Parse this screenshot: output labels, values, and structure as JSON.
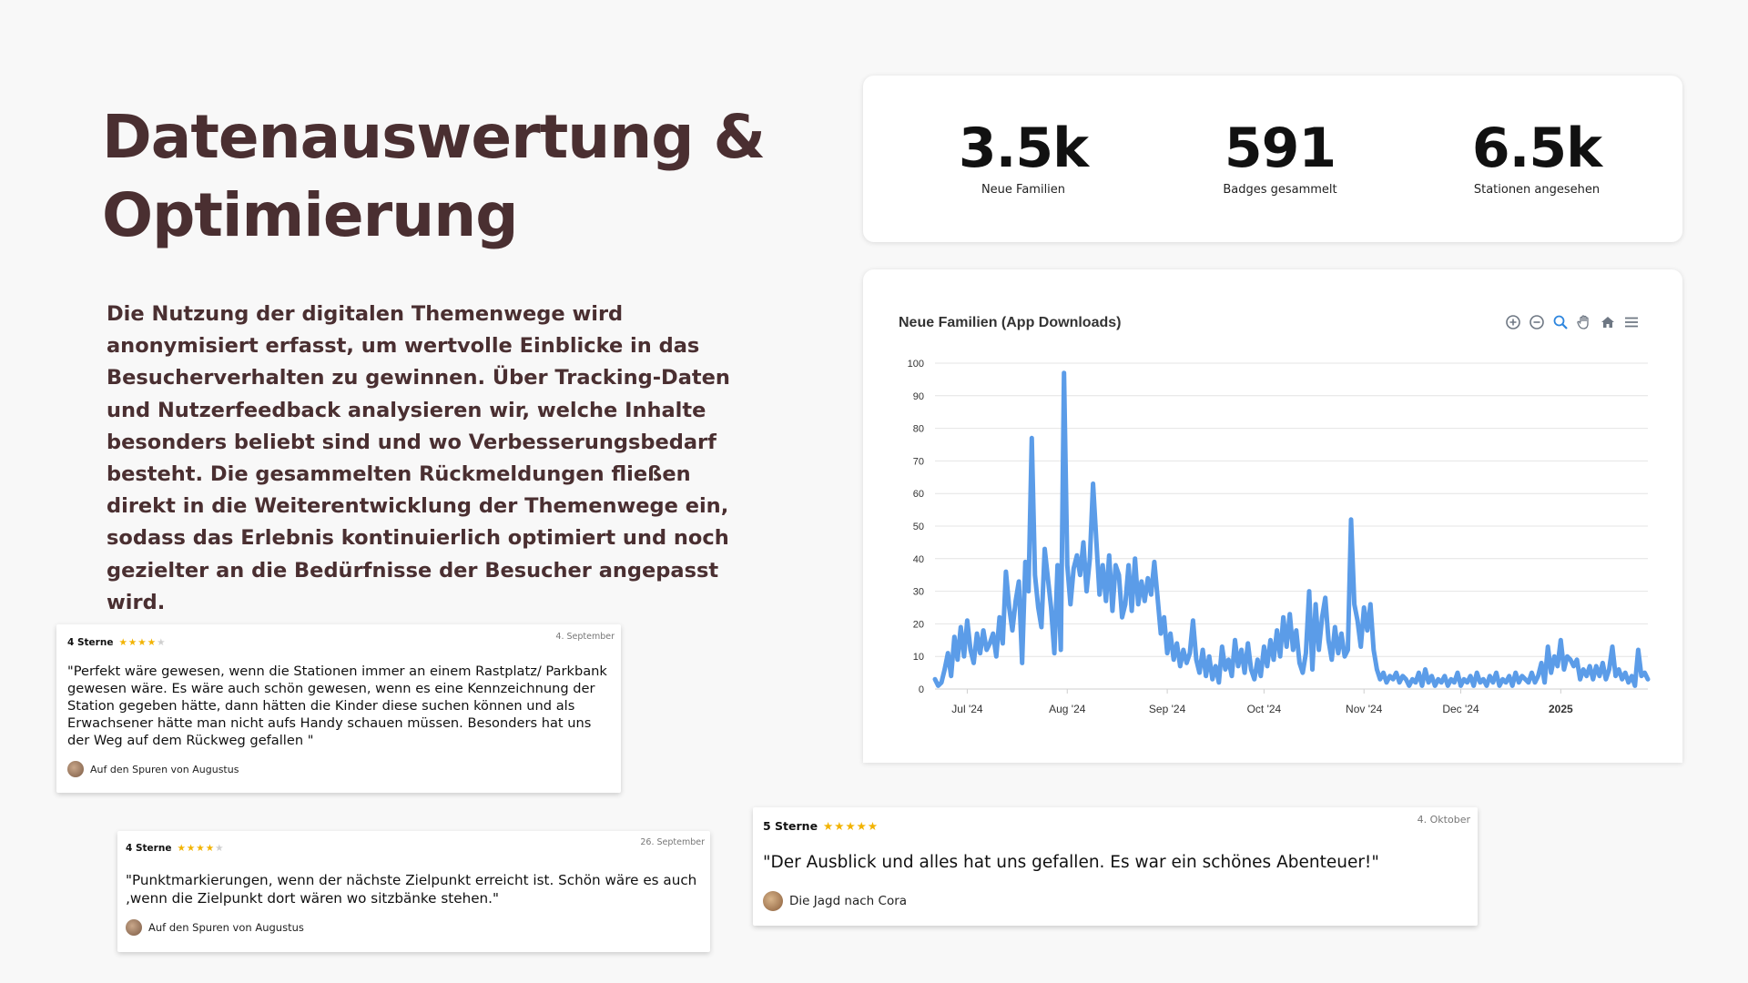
{
  "title_lines": [
    "Datenauswertung &",
    "Optimierung"
  ],
  "intro": "Die Nutzung der digitalen Themenwege wird anonymisiert erfasst, um wertvolle Einblicke in das Besucherverhalten zu gewinnen. Über Tracking-Daten und Nutzerfeedback analysieren wir, welche Inhalte besonders beliebt sind und wo Verbesserungsbedarf besteht. Die gesammelten Rückmeldungen fließen direkt in die Weiterentwicklung der Themenwege ein, sodass das Erlebnis kontinuierlich optimiert und noch gezielter an die Bedürfnisse der Besucher angepasst wird.",
  "stats": [
    {
      "value": "3.5k",
      "label": "Neue Familien"
    },
    {
      "value": "591",
      "label": "Badges gesammelt"
    },
    {
      "value": "6.5k",
      "label": "Stationen angesehen"
    }
  ],
  "toolbar": [
    "zoom-in-icon",
    "zoom-out-icon",
    "zoom-selection-icon",
    "pan-hand-icon",
    "home-reset-icon",
    "menu-icon"
  ],
  "chart_data": {
    "type": "line",
    "title": "Neue Familien (App Downloads)",
    "xlabel": "",
    "ylabel": "",
    "ylim": [
      0,
      100
    ],
    "yticks": [
      0,
      10,
      20,
      30,
      40,
      50,
      60,
      70,
      80,
      90,
      100
    ],
    "x_range": [
      "2024-06-21",
      "2025-01-28"
    ],
    "xticks": [
      {
        "date": "2024-07-01",
        "label": "Jul '24",
        "bold": false
      },
      {
        "date": "2024-08-01",
        "label": "Aug '24",
        "bold": false
      },
      {
        "date": "2024-09-01",
        "label": "Sep '24",
        "bold": false
      },
      {
        "date": "2024-10-01",
        "label": "Oct '24",
        "bold": false
      },
      {
        "date": "2024-11-01",
        "label": "Nov '24",
        "bold": false
      },
      {
        "date": "2024-12-01",
        "label": "Dec '24",
        "bold": false
      },
      {
        "date": "2025-01-01",
        "label": "2025",
        "bold": true
      }
    ],
    "grid": true,
    "color": "#5b9ce8",
    "series": [
      {
        "points": [
          [
            "2024-06-21",
            3
          ],
          [
            "2024-06-22",
            1
          ],
          [
            "2024-06-23",
            2
          ],
          [
            "2024-06-24",
            6
          ],
          [
            "2024-06-25",
            11
          ],
          [
            "2024-06-26",
            4
          ],
          [
            "2024-06-27",
            16
          ],
          [
            "2024-06-28",
            9
          ],
          [
            "2024-06-29",
            19
          ],
          [
            "2024-06-30",
            10
          ],
          [
            "2024-07-01",
            21
          ],
          [
            "2024-07-02",
            12
          ],
          [
            "2024-07-03",
            8
          ],
          [
            "2024-07-04",
            17
          ],
          [
            "2024-07-05",
            11
          ],
          [
            "2024-07-06",
            18
          ],
          [
            "2024-07-07",
            12
          ],
          [
            "2024-07-08",
            14
          ],
          [
            "2024-07-09",
            17
          ],
          [
            "2024-07-10",
            10
          ],
          [
            "2024-07-11",
            22
          ],
          [
            "2024-07-12",
            14
          ],
          [
            "2024-07-13",
            36
          ],
          [
            "2024-07-14",
            25
          ],
          [
            "2024-07-15",
            18
          ],
          [
            "2024-07-16",
            27
          ],
          [
            "2024-07-17",
            33
          ],
          [
            "2024-07-18",
            8
          ],
          [
            "2024-07-19",
            39
          ],
          [
            "2024-07-20",
            30
          ],
          [
            "2024-07-21",
            77
          ],
          [
            "2024-07-22",
            35
          ],
          [
            "2024-07-23",
            25
          ],
          [
            "2024-07-24",
            19
          ],
          [
            "2024-07-25",
            43
          ],
          [
            "2024-07-26",
            34
          ],
          [
            "2024-07-27",
            25
          ],
          [
            "2024-07-28",
            11
          ],
          [
            "2024-07-29",
            38
          ],
          [
            "2024-07-30",
            12
          ],
          [
            "2024-07-31",
            97
          ],
          [
            "2024-08-01",
            38
          ],
          [
            "2024-08-02",
            26
          ],
          [
            "2024-08-03",
            37
          ],
          [
            "2024-08-04",
            41
          ],
          [
            "2024-08-05",
            35
          ],
          [
            "2024-08-06",
            45
          ],
          [
            "2024-08-07",
            30
          ],
          [
            "2024-08-08",
            40
          ],
          [
            "2024-08-09",
            63
          ],
          [
            "2024-08-10",
            46
          ],
          [
            "2024-08-11",
            29
          ],
          [
            "2024-08-12",
            38
          ],
          [
            "2024-08-13",
            27
          ],
          [
            "2024-08-14",
            41
          ],
          [
            "2024-08-15",
            24
          ],
          [
            "2024-08-16",
            38
          ],
          [
            "2024-08-17",
            35
          ],
          [
            "2024-08-18",
            22
          ],
          [
            "2024-08-19",
            26
          ],
          [
            "2024-08-20",
            38
          ],
          [
            "2024-08-21",
            24
          ],
          [
            "2024-08-22",
            40
          ],
          [
            "2024-08-23",
            26
          ],
          [
            "2024-08-24",
            33
          ],
          [
            "2024-08-25",
            27
          ],
          [
            "2024-08-26",
            34
          ],
          [
            "2024-08-27",
            29
          ],
          [
            "2024-08-28",
            39
          ],
          [
            "2024-08-29",
            28
          ],
          [
            "2024-08-30",
            17
          ],
          [
            "2024-08-31",
            22
          ],
          [
            "2024-09-01",
            11
          ],
          [
            "2024-09-02",
            17
          ],
          [
            "2024-09-03",
            9
          ],
          [
            "2024-09-04",
            14
          ],
          [
            "2024-09-05",
            7
          ],
          [
            "2024-09-06",
            12
          ],
          [
            "2024-09-07",
            8
          ],
          [
            "2024-09-08",
            11
          ],
          [
            "2024-09-09",
            21
          ],
          [
            "2024-09-10",
            9
          ],
          [
            "2024-09-11",
            5
          ],
          [
            "2024-09-12",
            12
          ],
          [
            "2024-09-13",
            4
          ],
          [
            "2024-09-14",
            10
          ],
          [
            "2024-09-15",
            3
          ],
          [
            "2024-09-16",
            7
          ],
          [
            "2024-09-17",
            2
          ],
          [
            "2024-09-18",
            13
          ],
          [
            "2024-09-19",
            6
          ],
          [
            "2024-09-20",
            9
          ],
          [
            "2024-09-21",
            4
          ],
          [
            "2024-09-22",
            15
          ],
          [
            "2024-09-23",
            7
          ],
          [
            "2024-09-24",
            12
          ],
          [
            "2024-09-25",
            5
          ],
          [
            "2024-09-26",
            14
          ],
          [
            "2024-09-27",
            6
          ],
          [
            "2024-09-28",
            3
          ],
          [
            "2024-09-29",
            9
          ],
          [
            "2024-09-30",
            4
          ],
          [
            "2024-10-01",
            13
          ],
          [
            "2024-10-02",
            7
          ],
          [
            "2024-10-03",
            15
          ],
          [
            "2024-10-04",
            9
          ],
          [
            "2024-10-05",
            18
          ],
          [
            "2024-10-06",
            10
          ],
          [
            "2024-10-07",
            22
          ],
          [
            "2024-10-08",
            13
          ],
          [
            "2024-10-09",
            23
          ],
          [
            "2024-10-10",
            12
          ],
          [
            "2024-10-11",
            18
          ],
          [
            "2024-10-12",
            8
          ],
          [
            "2024-10-13",
            5
          ],
          [
            "2024-10-14",
            11
          ],
          [
            "2024-10-15",
            30
          ],
          [
            "2024-10-16",
            6
          ],
          [
            "2024-10-17",
            26
          ],
          [
            "2024-10-18",
            12
          ],
          [
            "2024-10-19",
            22
          ],
          [
            "2024-10-20",
            28
          ],
          [
            "2024-10-21",
            15
          ],
          [
            "2024-10-22",
            9
          ],
          [
            "2024-10-23",
            19
          ],
          [
            "2024-10-24",
            11
          ],
          [
            "2024-10-25",
            17
          ],
          [
            "2024-10-26",
            10
          ],
          [
            "2024-10-27",
            12
          ],
          [
            "2024-10-28",
            52
          ],
          [
            "2024-10-29",
            26
          ],
          [
            "2024-10-30",
            21
          ],
          [
            "2024-10-31",
            13
          ],
          [
            "2024-11-01",
            25
          ],
          [
            "2024-11-02",
            18
          ],
          [
            "2024-11-03",
            26
          ],
          [
            "2024-11-04",
            12
          ],
          [
            "2024-11-05",
            6
          ],
          [
            "2024-11-06",
            3
          ],
          [
            "2024-11-07",
            5
          ],
          [
            "2024-11-08",
            2
          ],
          [
            "2024-11-09",
            4
          ],
          [
            "2024-11-10",
            3
          ],
          [
            "2024-11-11",
            5
          ],
          [
            "2024-11-12",
            2
          ],
          [
            "2024-11-13",
            4
          ],
          [
            "2024-11-14",
            3
          ],
          [
            "2024-11-15",
            1
          ],
          [
            "2024-11-16",
            3
          ],
          [
            "2024-11-17",
            2
          ],
          [
            "2024-11-18",
            5
          ],
          [
            "2024-11-19",
            1
          ],
          [
            "2024-11-20",
            6
          ],
          [
            "2024-11-21",
            2
          ],
          [
            "2024-11-22",
            4
          ],
          [
            "2024-11-23",
            1
          ],
          [
            "2024-11-24",
            3
          ],
          [
            "2024-11-25",
            2
          ],
          [
            "2024-11-26",
            4
          ],
          [
            "2024-11-27",
            1
          ],
          [
            "2024-11-28",
            3
          ],
          [
            "2024-11-29",
            2
          ],
          [
            "2024-11-30",
            5
          ],
          [
            "2024-12-01",
            1
          ],
          [
            "2024-12-02",
            3
          ],
          [
            "2024-12-03",
            2
          ],
          [
            "2024-12-04",
            4
          ],
          [
            "2024-12-05",
            1
          ],
          [
            "2024-12-06",
            5
          ],
          [
            "2024-12-07",
            2
          ],
          [
            "2024-12-08",
            3
          ],
          [
            "2024-12-09",
            1
          ],
          [
            "2024-12-10",
            4
          ],
          [
            "2024-12-11",
            2
          ],
          [
            "2024-12-12",
            5
          ],
          [
            "2024-12-13",
            1
          ],
          [
            "2024-12-14",
            3
          ],
          [
            "2024-12-15",
            2
          ],
          [
            "2024-12-16",
            4
          ],
          [
            "2024-12-17",
            1
          ],
          [
            "2024-12-18",
            5
          ],
          [
            "2024-12-19",
            2
          ],
          [
            "2024-12-20",
            4
          ],
          [
            "2024-12-21",
            3
          ],
          [
            "2024-12-22",
            2
          ],
          [
            "2024-12-23",
            5
          ],
          [
            "2024-12-24",
            2
          ],
          [
            "2024-12-25",
            4
          ],
          [
            "2024-12-26",
            8
          ],
          [
            "2024-12-27",
            2
          ],
          [
            "2024-12-28",
            13
          ],
          [
            "2024-12-29",
            5
          ],
          [
            "2024-12-30",
            10
          ],
          [
            "2024-12-31",
            7
          ],
          [
            "2025-01-01",
            15
          ],
          [
            "2025-01-02",
            6
          ],
          [
            "2025-01-03",
            10
          ],
          [
            "2025-01-04",
            9
          ],
          [
            "2025-01-05",
            7
          ],
          [
            "2025-01-06",
            9
          ],
          [
            "2025-01-07",
            3
          ],
          [
            "2025-01-08",
            6
          ],
          [
            "2025-01-09",
            4
          ],
          [
            "2025-01-10",
            7
          ],
          [
            "2025-01-11",
            3
          ],
          [
            "2025-01-12",
            7
          ],
          [
            "2025-01-13",
            4
          ],
          [
            "2025-01-14",
            8
          ],
          [
            "2025-01-15",
            3
          ],
          [
            "2025-01-16",
            6
          ],
          [
            "2025-01-17",
            13
          ],
          [
            "2025-01-18",
            4
          ],
          [
            "2025-01-19",
            6
          ],
          [
            "2025-01-20",
            3
          ],
          [
            "2025-01-21",
            5
          ],
          [
            "2025-01-22",
            2
          ],
          [
            "2025-01-23",
            4
          ],
          [
            "2025-01-24",
            1
          ],
          [
            "2025-01-25",
            12
          ],
          [
            "2025-01-26",
            4
          ],
          [
            "2025-01-27",
            5
          ],
          [
            "2025-01-28",
            3
          ]
        ]
      }
    ]
  },
  "reviews": [
    {
      "rating_label": "4 Sterne",
      "stars": 4,
      "date": "4. September",
      "text": "\"Perfekt wäre gewesen, wenn die Stationen immer an einem Rastplatz/ Parkbank gewesen wäre. Es wäre auch schön gewesen, wenn es eine Kennzeichnung der Station gegeben hätte, dann hätten die Kinder diese suchen können und als Erwachsener hätte man nicht aufs Handy schauen müssen. Besonders hat uns der Weg auf dem Rückweg gefallen \"",
      "author": "Auf den Spuren von Augustus"
    },
    {
      "rating_label": "4 Sterne",
      "stars": 4,
      "date": "26. September",
      "text": "\"Punktmarkierungen, wenn der nächste Zielpunkt erreicht ist. Schön wäre es auch ‚wenn die Zielpunkt dort wären wo sitzbänke stehen.\"",
      "author": "Auf den Spuren von Augustus"
    },
    {
      "rating_label": "5 Sterne",
      "stars": 5,
      "date": "4. Oktober",
      "text": "\"Der Ausblick und alles hat uns gefallen. Es war ein schönes Abenteuer!\"",
      "author": "Die Jagd nach Cora"
    }
  ]
}
